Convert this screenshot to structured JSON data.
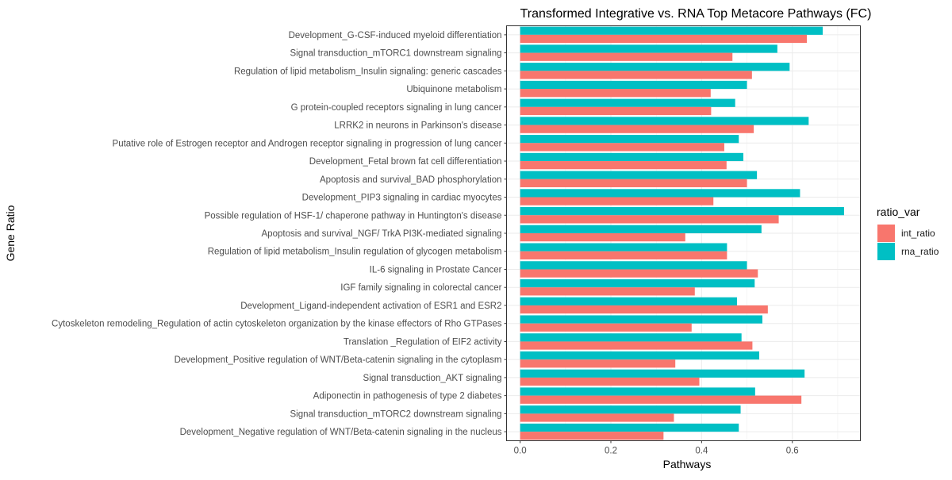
{
  "chart_data": {
    "type": "bar",
    "orientation": "horizontal",
    "title": "Transformed Integrative vs. RNA Top Metacore Pathways (FC)",
    "xlabel": "Pathways",
    "ylabel": "Gene Ratio",
    "xlim": [
      -0.03,
      0.75
    ],
    "xticks": [
      0.0,
      0.2,
      0.4,
      0.6
    ],
    "xtick_labels": [
      "0.0",
      "0.2",
      "0.4",
      "0.6"
    ],
    "grid": true,
    "legend": {
      "title": "ratio_var",
      "position": "right"
    },
    "categories": [
      "Development_G-CSF-induced myeloid differentiation",
      "Signal transduction_mTORC1 downstream signaling",
      "Regulation of lipid metabolism_Insulin signaling: generic cascades",
      "Ubiquinone metabolism",
      "G protein-coupled receptors signaling in lung cancer",
      "LRRK2 in neurons in Parkinson's disease",
      "Putative role of Estrogen receptor and Androgen receptor signaling in progression of lung cancer",
      "Development_Fetal brown fat cell differentiation",
      "Apoptosis and survival_BAD phosphorylation",
      "Development_PIP3 signaling in cardiac myocytes",
      "Possible regulation of HSF-1/ chaperone pathway in Huntington's disease",
      "Apoptosis and survival_NGF/ TrkA PI3K-mediated signaling",
      "Regulation of lipid metabolism_Insulin regulation of glycogen metabolism",
      "IL-6 signaling in Prostate Cancer",
      "IGF family signaling in colorectal cancer",
      "Development_Ligand-independent activation of ESR1 and ESR2",
      "Cytoskeleton remodeling_Regulation of actin cytoskeleton organization by the kinase effectors of Rho GTPases",
      "Translation _Regulation of EIF2 activity",
      "Development_Positive regulation of WNT/Beta-catenin signaling in the cytoplasm",
      "Signal transduction_AKT signaling",
      "Adiponectin in pathogenesis of type 2 diabetes",
      "Signal transduction_mTORC2 downstream signaling",
      "Development_Negative regulation of WNT/Beta-catenin signaling in the nucleus"
    ],
    "series": [
      {
        "name": "int_ratio",
        "color": "#F8766D",
        "values": [
          0.632,
          0.468,
          0.511,
          0.42,
          0.421,
          0.515,
          0.45,
          0.455,
          0.5,
          0.426,
          0.57,
          0.364,
          0.456,
          0.524,
          0.385,
          0.546,
          0.378,
          0.512,
          0.342,
          0.395,
          0.62,
          0.339,
          0.316
        ]
      },
      {
        "name": "rna_ratio",
        "color": "#00BFC4",
        "values": [
          0.667,
          0.567,
          0.594,
          0.5,
          0.474,
          0.636,
          0.482,
          0.492,
          0.522,
          0.617,
          0.714,
          0.532,
          0.456,
          0.5,
          0.517,
          0.478,
          0.534,
          0.488,
          0.527,
          0.627,
          0.518,
          0.486,
          0.482
        ]
      }
    ]
  }
}
